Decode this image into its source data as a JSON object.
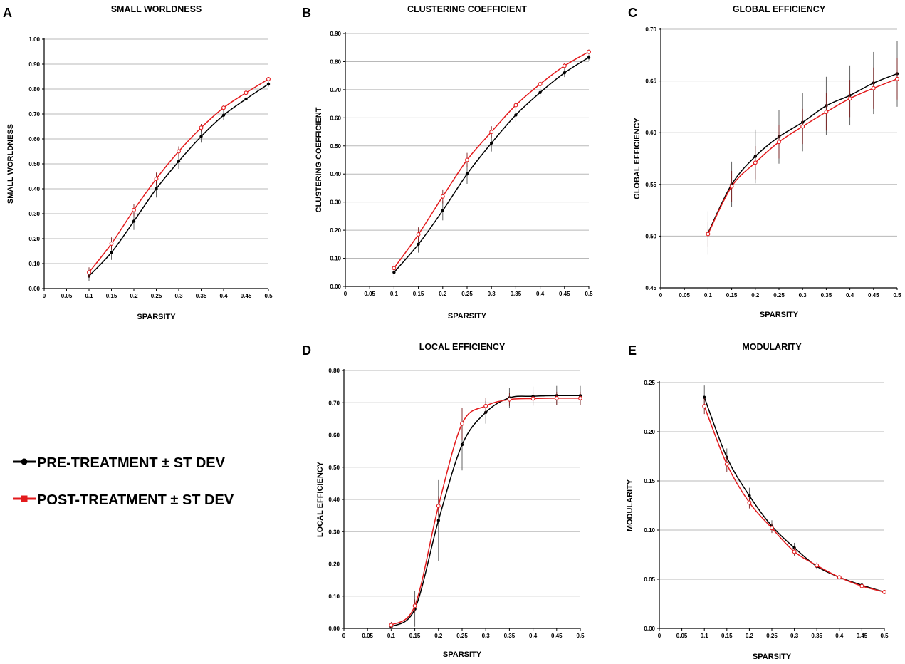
{
  "legend": {
    "pre": "PRE-TREATMENT ± ST DEV",
    "post": "POST-TREATMENT ± ST DEV",
    "pre_color": "#000000",
    "post_color": "#e31a1c"
  },
  "chart_data": [
    {
      "id": "A",
      "panel_letter": "A",
      "type": "line",
      "title": "SMALL WORLDNESS",
      "xlabel": "SPARSITY",
      "ylabel": "SMALL WORLDNESS",
      "xlim": [
        0,
        0.5
      ],
      "ylim": [
        0,
        1.0
      ],
      "x_ticks": [
        "0",
        "0.05",
        "0.1",
        "0.15",
        "0.2",
        "0.25",
        "0.3",
        "0.35",
        "0.4",
        "0.45",
        "0.5"
      ],
      "y_ticks": [
        "0.00",
        "0.10",
        "0.20",
        "0.30",
        "0.40",
        "0.50",
        "0.60",
        "0.70",
        "0.80",
        "0.90",
        "1.00"
      ],
      "x": [
        0.1,
        0.15,
        0.2,
        0.25,
        0.3,
        0.35,
        0.4,
        0.45,
        0.5
      ],
      "series": [
        {
          "name": "PRE-TREATMENT ± ST DEV",
          "color": "#000000",
          "values": [
            0.05,
            0.145,
            0.27,
            0.4,
            0.51,
            0.61,
            0.695,
            0.76,
            0.82
          ],
          "errors": [
            0.02,
            0.03,
            0.035,
            0.035,
            0.03,
            0.025,
            0.02,
            0.015,
            0.01
          ]
        },
        {
          "name": "POST-TREATMENT ± ST DEV",
          "color": "#e31a1c",
          "values": [
            0.065,
            0.18,
            0.315,
            0.44,
            0.55,
            0.645,
            0.725,
            0.785,
            0.84
          ],
          "errors": [
            0.02,
            0.025,
            0.025,
            0.025,
            0.02,
            0.015,
            0.012,
            0.01,
            0.008
          ]
        }
      ]
    },
    {
      "id": "B",
      "panel_letter": "B",
      "type": "line",
      "title": "CLUSTERING COEFFICIENT",
      "xlabel": "SPARSITY",
      "ylabel": "CLUSTERING COEFFICIENT",
      "xlim": [
        0,
        0.5
      ],
      "ylim": [
        0,
        0.9
      ],
      "x_ticks": [
        "0",
        "0.05",
        "0.1",
        "0.15",
        "0.2",
        "0.25",
        "0.3",
        "0.35",
        "0.4",
        "0.45",
        "0.5"
      ],
      "y_ticks": [
        "0.00",
        "0.10",
        "0.20",
        "0.30",
        "0.40",
        "0.50",
        "0.60",
        "0.70",
        "0.80",
        "0.90"
      ],
      "x": [
        0.1,
        0.15,
        0.2,
        0.25,
        0.3,
        0.35,
        0.4,
        0.45,
        0.5
      ],
      "series": [
        {
          "name": "PRE-TREATMENT ± ST DEV",
          "color": "#000000",
          "values": [
            0.05,
            0.15,
            0.27,
            0.4,
            0.51,
            0.61,
            0.69,
            0.76,
            0.815
          ],
          "errors": [
            0.02,
            0.03,
            0.035,
            0.035,
            0.03,
            0.025,
            0.02,
            0.015,
            0.01
          ]
        },
        {
          "name": "POST-TREATMENT ± ST DEV",
          "color": "#e31a1c",
          "values": [
            0.065,
            0.185,
            0.32,
            0.45,
            0.55,
            0.645,
            0.72,
            0.785,
            0.835
          ],
          "errors": [
            0.02,
            0.025,
            0.025,
            0.025,
            0.02,
            0.015,
            0.012,
            0.01,
            0.008
          ]
        }
      ]
    },
    {
      "id": "C",
      "panel_letter": "C",
      "type": "line",
      "title": "GLOBAL EFFICIENCY",
      "xlabel": "SPARSITY",
      "ylabel": "GLOBAL EFFICIENCY",
      "xlim": [
        0,
        0.5
      ],
      "ylim": [
        0.45,
        0.7
      ],
      "x_ticks": [
        "0",
        "0.05",
        "0.1",
        "0.15",
        "0.2",
        "0.25",
        "0.3",
        "0.35",
        "0.4",
        "0.45",
        "0.5"
      ],
      "y_ticks": [
        "0.45",
        "0.50",
        "0.55",
        "0.60",
        "0.65",
        "0.70"
      ],
      "x": [
        0.1,
        0.15,
        0.2,
        0.25,
        0.3,
        0.35,
        0.4,
        0.45,
        0.5
      ],
      "series": [
        {
          "name": "PRE-TREATMENT ± ST DEV",
          "color": "#000000",
          "values": [
            0.503,
            0.55,
            0.577,
            0.596,
            0.61,
            0.626,
            0.636,
            0.648,
            0.657
          ],
          "errors": [
            0.021,
            0.022,
            0.026,
            0.026,
            0.028,
            0.028,
            0.029,
            0.03,
            0.032
          ]
        },
        {
          "name": "POST-TREATMENT ± ST DEV",
          "color": "#e31a1c",
          "values": [
            0.502,
            0.548,
            0.571,
            0.591,
            0.606,
            0.62,
            0.633,
            0.643,
            0.652
          ],
          "errors": [
            0.012,
            0.015,
            0.016,
            0.016,
            0.017,
            0.018,
            0.018,
            0.02,
            0.02
          ]
        }
      ]
    },
    {
      "id": "D",
      "panel_letter": "D",
      "type": "line",
      "title": "LOCAL EFFICIENCY",
      "xlabel": "SPARSITY",
      "ylabel": "LOCAL  EFFICIENCY",
      "xlim": [
        0,
        0.5
      ],
      "ylim": [
        0,
        0.8
      ],
      "x_ticks": [
        "0",
        "0.05",
        "0.1",
        "0.15",
        "0.2",
        "0.25",
        "0.3",
        "0.35",
        "0.4",
        "0.45",
        "0.5"
      ],
      "y_ticks": [
        "0.00",
        "0.10",
        "0.20",
        "0.30",
        "0.40",
        "0.50",
        "0.60",
        "0.70",
        "0.80"
      ],
      "x": [
        0.1,
        0.15,
        0.2,
        0.25,
        0.3,
        0.35,
        0.4,
        0.45,
        0.5
      ],
      "series": [
        {
          "name": "PRE-TREATMENT ± ST DEV",
          "color": "#000000",
          "values": [
            0.005,
            0.06,
            0.335,
            0.57,
            0.67,
            0.715,
            0.72,
            0.722,
            0.722
          ],
          "errors": [
            0.01,
            0.055,
            0.125,
            0.08,
            0.035,
            0.03,
            0.03,
            0.03,
            0.03
          ]
        },
        {
          "name": "POST-TREATMENT ± ST DEV",
          "color": "#e31a1c",
          "values": [
            0.01,
            0.07,
            0.38,
            0.635,
            0.69,
            0.71,
            0.713,
            0.714,
            0.714
          ],
          "errors": [
            0.01,
            0.02,
            0.03,
            0.05,
            0.025,
            0.02,
            0.02,
            0.02,
            0.02
          ]
        }
      ]
    },
    {
      "id": "E",
      "panel_letter": "E",
      "type": "line",
      "title": "MODULARITY",
      "xlabel": "SPARSITY",
      "ylabel": "MODULARITY",
      "xlim": [
        0,
        0.5
      ],
      "ylim": [
        0,
        0.25
      ],
      "x_ticks": [
        "0",
        "0.05",
        "0.1",
        "0.15",
        "0.2",
        "0.25",
        "0.3",
        "0.35",
        "0.4",
        "0.45",
        "0.5"
      ],
      "y_ticks": [
        "0.00",
        "0.05",
        "0.10",
        "0.15",
        "0.20",
        "0.25"
      ],
      "x": [
        0.1,
        0.15,
        0.2,
        0.25,
        0.3,
        0.35,
        0.4,
        0.45,
        0.5
      ],
      "series": [
        {
          "name": "PRE-TREATMENT ± ST DEV",
          "color": "#000000",
          "values": [
            0.235,
            0.174,
            0.135,
            0.104,
            0.082,
            0.063,
            0.052,
            0.044,
            0.037
          ],
          "errors": [
            0.012,
            0.009,
            0.008,
            0.006,
            0.005,
            0.003,
            0.002,
            0.002,
            0.002
          ]
        },
        {
          "name": "POST-TREATMENT ± ST DEV",
          "color": "#e31a1c",
          "values": [
            0.226,
            0.167,
            0.128,
            0.102,
            0.078,
            0.064,
            0.052,
            0.043,
            0.037
          ],
          "errors": [
            0.008,
            0.008,
            0.006,
            0.005,
            0.004,
            0.003,
            0.002,
            0.002,
            0.002
          ]
        }
      ]
    }
  ]
}
